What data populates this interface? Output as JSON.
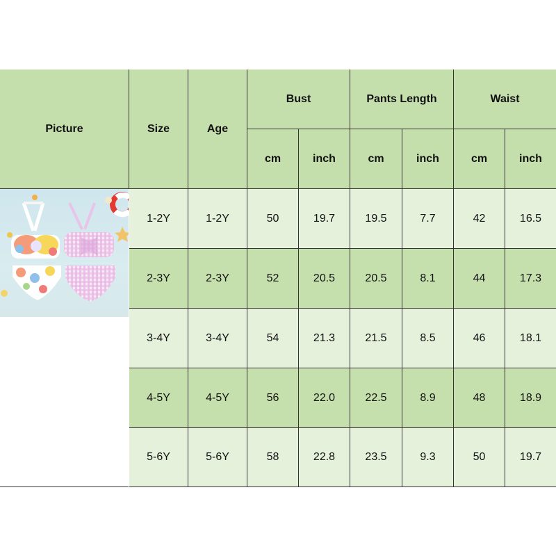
{
  "table": {
    "headers": {
      "picture": "Picture",
      "size": "Size",
      "age": "Age",
      "bust": "Bust",
      "pants_length": "Pants Length",
      "waist": "Waist",
      "cm": "cm",
      "inch": "inch"
    },
    "rows": [
      {
        "size": "1-2Y",
        "age": "1-2Y",
        "bust_cm": "50",
        "bust_in": "19.7",
        "pants_cm": "19.5",
        "pants_in": "7.7",
        "waist_cm": "42",
        "waist_in": "16.5"
      },
      {
        "size": "2-3Y",
        "age": "2-3Y",
        "bust_cm": "52",
        "bust_in": "20.5",
        "pants_cm": "20.5",
        "pants_in": "8.1",
        "waist_cm": "44",
        "waist_in": "17.3"
      },
      {
        "size": "3-4Y",
        "age": "3-4Y",
        "bust_cm": "54",
        "bust_in": "21.3",
        "pants_cm": "21.5",
        "pants_in": "8.5",
        "waist_cm": "46",
        "waist_in": "18.1"
      },
      {
        "size": "4-5Y",
        "age": "4-5Y",
        "bust_cm": "56",
        "bust_in": "22.0",
        "pants_cm": "22.5",
        "pants_in": "8.9",
        "waist_cm": "48",
        "waist_in": "18.9"
      },
      {
        "size": "5-6Y",
        "age": "5-6Y",
        "bust_cm": "58",
        "bust_in": "22.8",
        "pants_cm": "23.5",
        "pants_in": "9.3",
        "waist_cm": "50",
        "waist_in": "19.7"
      }
    ]
  },
  "colors": {
    "header": "#c4dfac",
    "row_light": "#e5f1db",
    "row_dark": "#c6e0ad",
    "border": "#333333"
  }
}
